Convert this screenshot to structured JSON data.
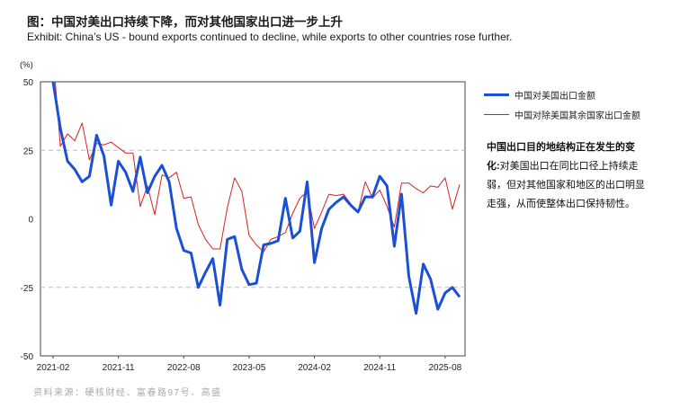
{
  "title": "图：中国对美出口持续下降，而对其他国家出口进一步上升",
  "subtitle": "Exhibit: China’s US - bound exports continued to decline, while exports to other countries rose further.",
  "note": {
    "heading": "中国出口目的地结构正在发生的变化:",
    "body": "对美国出口在同比口径上持续走弱，但对其他国家和地区的出口明显走强，从而使整体出口保持韧性。"
  },
  "source": "资料来源：硬核财经、富春路97号、高盛",
  "chart_data": {
    "type": "line",
    "yunit": "(%)",
    "ylim": [
      -50,
      50
    ],
    "yticks": [
      50,
      25,
      0,
      -25,
      -50
    ],
    "grid": "dashed at 25 and -25",
    "legend_position": "right",
    "x_tick_labels": [
      "2021-02",
      "2021-11",
      "2022-08",
      "2023-05",
      "2024-02",
      "2024-11",
      "2025-08"
    ],
    "x_tick_index": [
      0,
      9,
      18,
      27,
      36,
      45,
      54
    ],
    "series": [
      {
        "name": "中国对美国出口金额",
        "color": "#1a4fd6",
        "width": 3,
        "values": [
          50,
          33,
          21,
          18,
          13.5,
          15.5,
          30.5,
          23,
          5,
          21,
          17,
          10,
          22.5,
          9.5,
          15.5,
          19.5,
          13.5,
          -3.5,
          -11.5,
          -12.5,
          -25,
          -19.5,
          -14.5,
          -31.5,
          -7.5,
          -6.5,
          -18.5,
          -24,
          -23.5,
          -9.5,
          -9,
          -8,
          7.5,
          -7,
          -4.5,
          13.5,
          -16,
          -3.5,
          3.5,
          6,
          8,
          5,
          2.5,
          8,
          8,
          15.5,
          12,
          -10,
          9,
          -21,
          -34.5,
          -16.5,
          -22,
          -33,
          -27,
          -25,
          -28.5
        ]
      },
      {
        "name": "中国对除美国其余国家出口金额",
        "color": "#d62020",
        "width": 1,
        "values": [
          60,
          26.5,
          31,
          28.5,
          35,
          21.5,
          27.5,
          27,
          28,
          26,
          24,
          24,
          4.5,
          12,
          1.5,
          16,
          15,
          17,
          7.5,
          8,
          -2,
          -7.5,
          -11,
          -11,
          4,
          15,
          10,
          -6,
          -9.5,
          -12,
          -7.5,
          -6.5,
          -5,
          2,
          7.5,
          10,
          -3.5,
          2.5,
          9,
          8.5,
          9,
          5.5,
          2.5,
          13.5,
          7.5,
          10.5,
          4.5,
          -3,
          13,
          13,
          11,
          9.5,
          12,
          11.5,
          15,
          3.5,
          12.5
        ]
      }
    ]
  }
}
